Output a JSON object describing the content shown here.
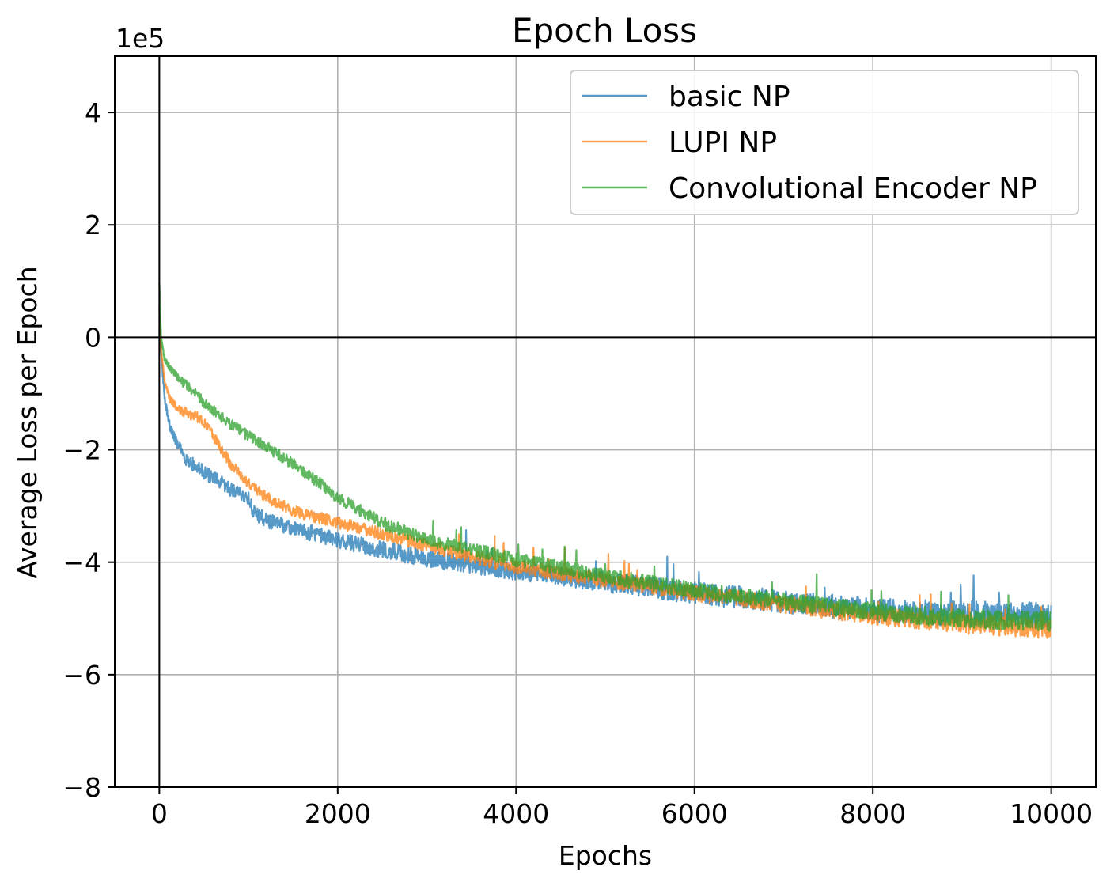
{
  "chart_data": {
    "type": "line",
    "title": "Epoch Loss",
    "xlabel": "Epochs",
    "ylabel": "Average Loss per Epoch",
    "y_scale_label": "1e5",
    "xlim": [
      -500,
      10500
    ],
    "ylim": [
      -800000,
      500000
    ],
    "x_ticks": [
      0,
      2000,
      4000,
      6000,
      8000,
      10000
    ],
    "x_tick_labels": [
      "0",
      "2000",
      "4000",
      "6000",
      "8000",
      "10000"
    ],
    "y_ticks": [
      -800000,
      -600000,
      -400000,
      -200000,
      0,
      200000,
      400000
    ],
    "y_tick_labels": [
      "−8",
      "−6",
      "−4",
      "−2",
      "0",
      "2",
      "4"
    ],
    "grid": true,
    "reference_lines": {
      "x": 0,
      "y": 0
    },
    "legend_position": "top-right",
    "series": [
      {
        "name": "basic NP",
        "color": "#1f77b4",
        "noise": 12000,
        "x": [
          0,
          20,
          60,
          120,
          200,
          300,
          400,
          600,
          800,
          1000,
          1050,
          1200,
          1500,
          2000,
          2500,
          3000,
          3500,
          4000,
          5000,
          6000,
          7000,
          8000,
          9000,
          10000
        ],
        "y": [
          60000,
          -30000,
          -110000,
          -160000,
          -190000,
          -215000,
          -230000,
          -250000,
          -270000,
          -285000,
          -310000,
          -325000,
          -340000,
          -360000,
          -378000,
          -393000,
          -405000,
          -415000,
          -435000,
          -455000,
          -470000,
          -485000,
          -492000,
          -495000
        ]
      },
      {
        "name": "LUPI NP",
        "color": "#ff7f0e",
        "noise": 9000,
        "x": [
          0,
          20,
          60,
          120,
          200,
          300,
          400,
          500,
          600,
          800,
          1000,
          1200,
          1500,
          2000,
          2500,
          3000,
          3500,
          4000,
          5000,
          6000,
          7000,
          8000,
          9000,
          10000
        ],
        "y": [
          50000,
          -20000,
          -80000,
          -110000,
          -125000,
          -135000,
          -140000,
          -150000,
          -175000,
          -225000,
          -260000,
          -285000,
          -308000,
          -330000,
          -350000,
          -370000,
          -390000,
          -408000,
          -432000,
          -455000,
          -475000,
          -495000,
          -510000,
          -518000
        ]
      },
      {
        "name": "Convolutional Encoder NP",
        "color": "#2ca02c",
        "noise": 9000,
        "x": [
          0,
          20,
          60,
          120,
          200,
          300,
          400,
          600,
          800,
          1000,
          1200,
          1500,
          1800,
          2000,
          2500,
          3000,
          3500,
          4000,
          5000,
          6000,
          7000,
          8000,
          9000,
          10000
        ],
        "y": [
          100000,
          0,
          -40000,
          -55000,
          -70000,
          -85000,
          -100000,
          -130000,
          -155000,
          -175000,
          -195000,
          -225000,
          -260000,
          -285000,
          -330000,
          -360000,
          -378000,
          -395000,
          -425000,
          -450000,
          -470000,
          -488000,
          -500000,
          -505000
        ]
      }
    ]
  }
}
